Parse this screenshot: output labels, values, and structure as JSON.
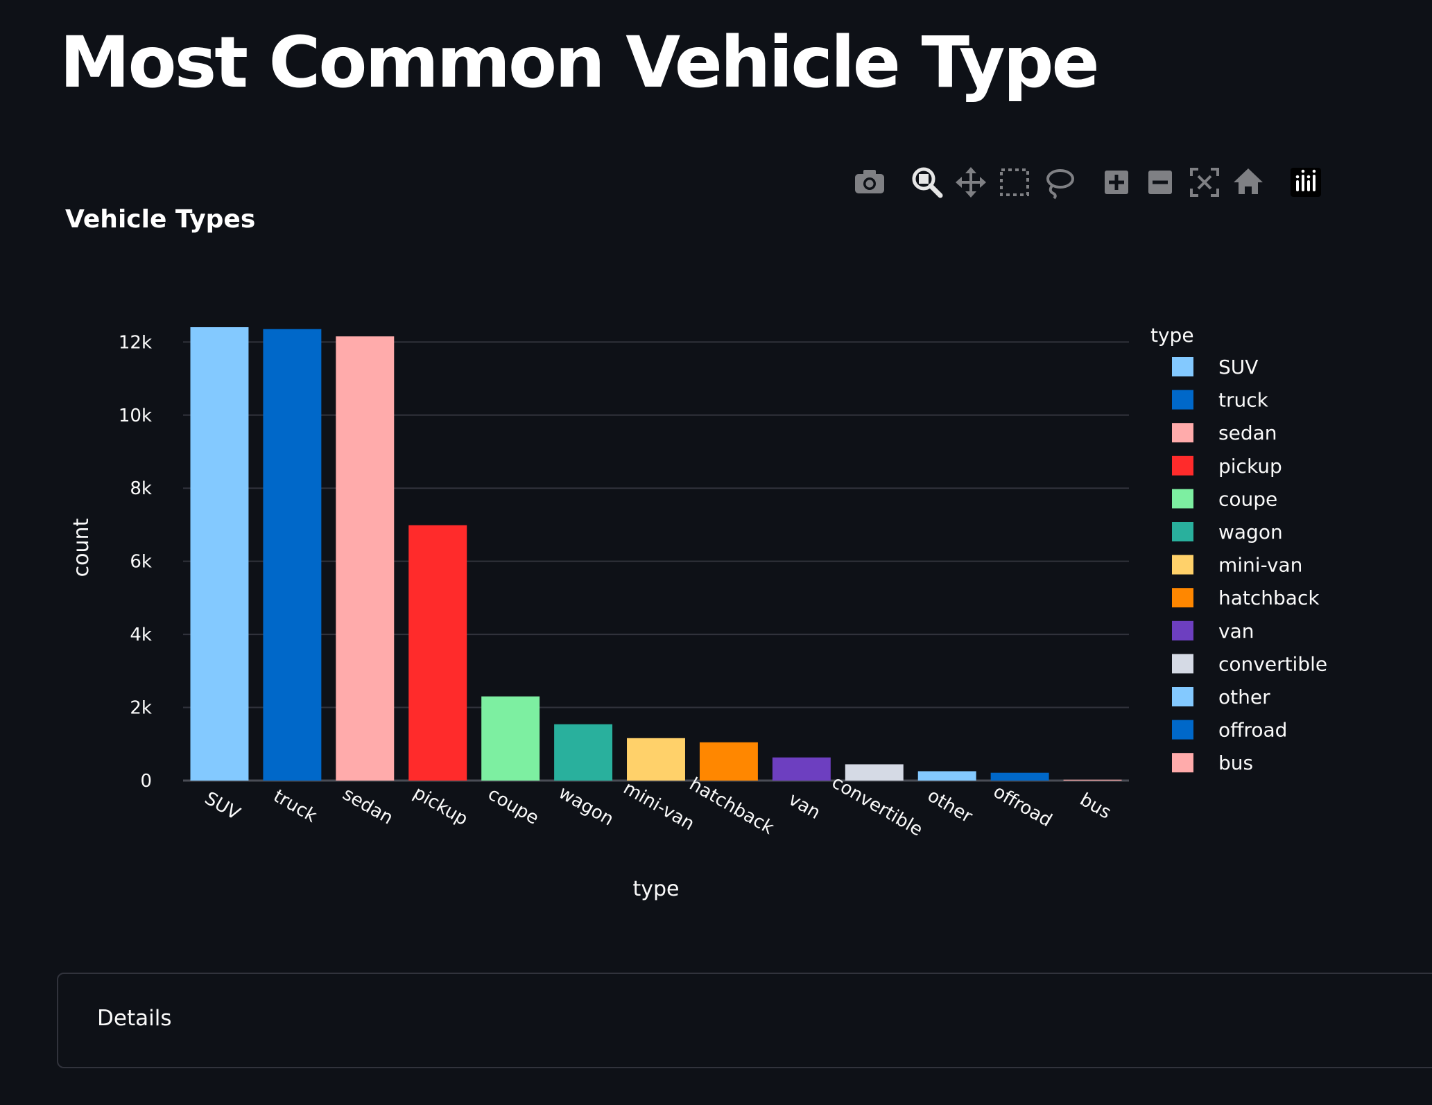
{
  "page": {
    "title": "Most Common Vehicle Type"
  },
  "modebar": {
    "buttons": [
      {
        "name": "camera-icon",
        "glyph": "camera"
      },
      {
        "name": "zoom-icon",
        "glyph": "zoom"
      },
      {
        "name": "pan-icon",
        "glyph": "pan"
      },
      {
        "name": "box-select-icon",
        "glyph": "box"
      },
      {
        "name": "lasso-select-icon",
        "glyph": "lasso"
      },
      {
        "name": "zoom-in-icon",
        "glyph": "plus"
      },
      {
        "name": "zoom-out-icon",
        "glyph": "minus"
      },
      {
        "name": "autoscale-icon",
        "glyph": "autoscale"
      },
      {
        "name": "reset-axes-icon",
        "glyph": "home"
      },
      {
        "name": "plotly-logo-icon",
        "glyph": "plotly"
      }
    ]
  },
  "chart_data": {
    "type": "bar",
    "title": "Vehicle Types",
    "xlabel": "type",
    "ylabel": "count",
    "categories": [
      "SUV",
      "truck",
      "sedan",
      "pickup",
      "coupe",
      "wagon",
      "mini-van",
      "hatchback",
      "van",
      "convertible",
      "other",
      "offroad",
      "bus"
    ],
    "values": [
      12405,
      12353,
      12154,
      6988,
      2303,
      1541,
      1161,
      1047,
      633,
      446,
      256,
      214,
      24
    ],
    "colors": [
      "#83c9ff",
      "#0068c9",
      "#ffabab",
      "#ff2b2b",
      "#7defa1",
      "#29b09d",
      "#ffd16a",
      "#ff8700",
      "#6d3fc0",
      "#d5dae5",
      "#83c9ff",
      "#0068c9",
      "#ffabab"
    ],
    "ylim": [
      0,
      12500
    ],
    "yticks": [
      0,
      2000,
      4000,
      6000,
      8000,
      10000,
      12000
    ],
    "ytick_labels": [
      "0",
      "2k",
      "4k",
      "6k",
      "8k",
      "10k",
      "12k"
    ],
    "grid": true,
    "legend": {
      "title": "type",
      "placement": "right"
    }
  },
  "details": {
    "label": "Details"
  }
}
